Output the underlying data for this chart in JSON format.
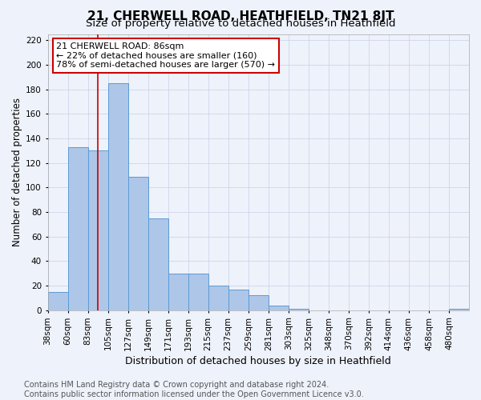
{
  "title": "21, CHERWELL ROAD, HEATHFIELD, TN21 8JT",
  "subtitle": "Size of property relative to detached houses in Heathfield",
  "xlabel": "Distribution of detached houses by size in Heathfield",
  "ylabel": "Number of detached properties",
  "footnote1": "Contains HM Land Registry data © Crown copyright and database right 2024.",
  "footnote2": "Contains public sector information licensed under the Open Government Licence v3.0.",
  "bin_labels": [
    "38sqm",
    "60sqm",
    "83sqm",
    "105sqm",
    "127sqm",
    "149sqm",
    "171sqm",
    "193sqm",
    "215sqm",
    "237sqm",
    "259sqm",
    "281sqm",
    "303sqm",
    "325sqm",
    "348sqm",
    "370sqm",
    "392sqm",
    "414sqm",
    "436sqm",
    "458sqm",
    "480sqm"
  ],
  "values": [
    15,
    133,
    130,
    185,
    109,
    75,
    30,
    30,
    20,
    17,
    12,
    4,
    1,
    0,
    0,
    0,
    0,
    0,
    0,
    0,
    1
  ],
  "bar_color": "#aec6e8",
  "bar_edge_color": "#5b9bd5",
  "red_line_x": 2.5,
  "red_line_color": "#cc0000",
  "annotation_text": "21 CHERWELL ROAD: 86sqm\n← 22% of detached houses are smaller (160)\n78% of semi-detached houses are larger (570) →",
  "annotation_box_color": "#ffffff",
  "annotation_box_edge": "#cc0000",
  "ylim": [
    0,
    225
  ],
  "yticks": [
    0,
    20,
    40,
    60,
    80,
    100,
    120,
    140,
    160,
    180,
    200,
    220
  ],
  "background_color": "#eef2fa",
  "grid_color": "#c8d0e8",
  "title_fontsize": 11,
  "subtitle_fontsize": 9.5,
  "xlabel_fontsize": 9,
  "ylabel_fontsize": 8.5,
  "tick_fontsize": 7.5,
  "annotation_fontsize": 8,
  "footnote_fontsize": 7
}
